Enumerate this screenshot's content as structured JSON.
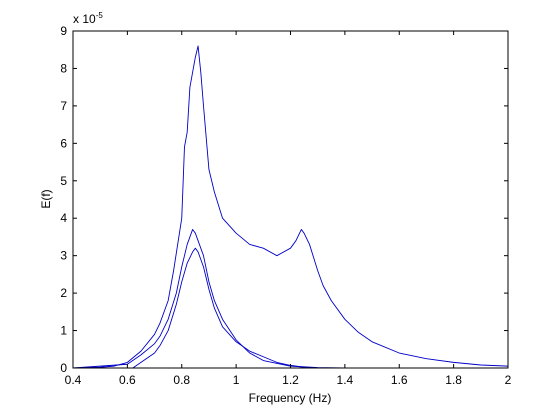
{
  "chart_data": {
    "type": "line",
    "title": "",
    "xlabel": "Frequency (Hz)",
    "ylabel": "E(f)",
    "y_multiplier_label": "x 10",
    "y_multiplier_exponent": "-5",
    "xlim": [
      0.4,
      2.0
    ],
    "ylim": [
      0,
      9
    ],
    "x_ticks": [
      0.4,
      0.6,
      0.8,
      1.0,
      1.2,
      1.4,
      1.6,
      1.8,
      2.0
    ],
    "x_tick_labels": [
      "0.4",
      "0.6",
      "0.8",
      "1",
      "1.2",
      "1.4",
      "1.6",
      "1.8",
      "2"
    ],
    "y_ticks": [
      0,
      1,
      2,
      3,
      4,
      5,
      6,
      7,
      8,
      9
    ],
    "y_tick_labels": [
      "0",
      "1",
      "2",
      "3",
      "4",
      "5",
      "6",
      "7",
      "8",
      "9"
    ],
    "grid": false,
    "legend": "none",
    "line_color": "#0000c8",
    "series": [
      {
        "x": [
          0.4,
          0.5,
          0.55,
          0.6,
          0.65,
          0.7,
          0.72,
          0.75,
          0.77,
          0.8,
          0.81,
          0.82,
          0.83,
          0.84,
          0.85,
          0.86,
          0.87,
          0.88,
          0.9,
          0.92,
          0.95,
          1.0,
          1.05,
          1.1,
          1.15,
          1.2,
          1.22,
          1.24,
          1.25,
          1.27,
          1.3,
          1.32,
          1.35,
          1.4,
          1.45,
          1.5,
          1.6,
          1.7,
          1.8,
          1.9,
          2.0
        ],
        "y": [
          0.0,
          0.02,
          0.05,
          0.15,
          0.45,
          0.9,
          1.2,
          1.8,
          2.6,
          4.0,
          5.9,
          6.3,
          7.5,
          7.9,
          8.3,
          8.6,
          7.9,
          7.0,
          5.3,
          4.7,
          4.0,
          3.6,
          3.3,
          3.2,
          3.0,
          3.2,
          3.4,
          3.7,
          3.6,
          3.3,
          2.6,
          2.2,
          1.8,
          1.3,
          0.95,
          0.7,
          0.4,
          0.25,
          0.15,
          0.08,
          0.05
        ]
      },
      {
        "x": [
          0.4,
          0.6,
          0.65,
          0.7,
          0.72,
          0.75,
          0.78,
          0.8,
          0.82,
          0.84,
          0.85,
          0.86,
          0.88,
          0.9,
          0.92,
          0.95,
          1.0,
          1.05,
          1.1,
          1.2,
          1.3,
          1.4,
          2.0
        ],
        "y": [
          0.0,
          0.1,
          0.35,
          0.65,
          0.85,
          1.3,
          2.0,
          2.7,
          3.3,
          3.7,
          3.6,
          3.4,
          3.0,
          2.3,
          1.8,
          1.3,
          0.75,
          0.4,
          0.2,
          0.05,
          0.01,
          0.0,
          0.0
        ]
      },
      {
        "x": [
          0.4,
          0.62,
          0.65,
          0.7,
          0.72,
          0.75,
          0.78,
          0.8,
          0.82,
          0.84,
          0.85,
          0.86,
          0.88,
          0.9,
          0.92,
          0.95,
          1.0,
          1.05,
          1.1,
          1.15,
          1.2,
          1.25,
          1.3,
          2.0
        ],
        "y": [
          0.0,
          0.0,
          0.15,
          0.4,
          0.6,
          1.0,
          1.7,
          2.3,
          2.8,
          3.1,
          3.2,
          3.1,
          2.7,
          2.1,
          1.6,
          1.1,
          0.7,
          0.45,
          0.3,
          0.15,
          0.07,
          0.02,
          0.0,
          0.0
        ]
      }
    ]
  }
}
